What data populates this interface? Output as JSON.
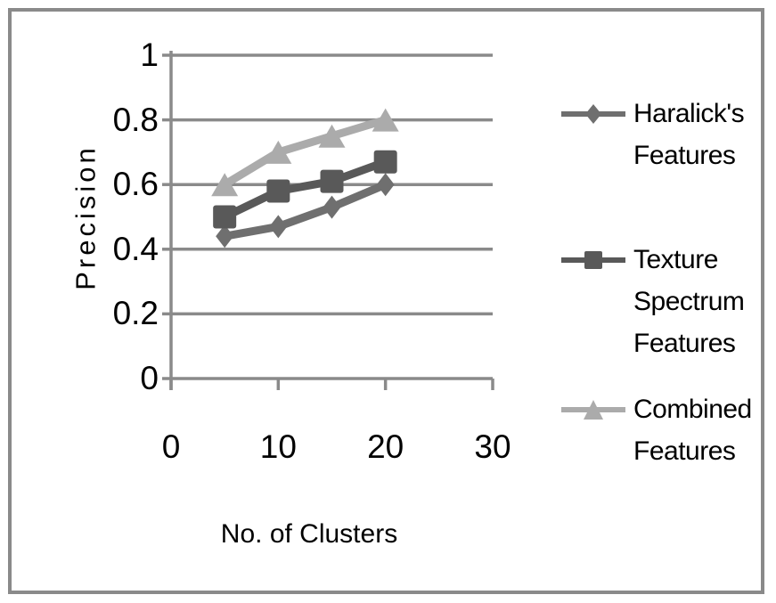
{
  "chart_data": {
    "type": "line",
    "xlabel": "No. of Clusters",
    "ylabel": "Precision",
    "x": [
      5,
      10,
      15,
      20
    ],
    "xlim": [
      0,
      30
    ],
    "ylim": [
      0,
      1
    ],
    "x_ticks": [
      0,
      10,
      20,
      30
    ],
    "x_tick_labels": [
      "0",
      "10",
      "20",
      "30"
    ],
    "y_ticks": [
      0,
      0.2,
      0.4,
      0.6,
      0.8,
      1
    ],
    "y_tick_labels": [
      "0",
      "0.2",
      "0.4",
      "0.6",
      "0.8",
      "1"
    ],
    "grid": true,
    "legend_position": "right",
    "series": [
      {
        "name": "Haralick's Features",
        "marker": "diamond",
        "color": "#6f6f6f",
        "values": [
          0.44,
          0.47,
          0.53,
          0.6
        ]
      },
      {
        "name": "Texture Spectrum Features",
        "marker": "square",
        "color": "#595959",
        "values": [
          0.5,
          0.58,
          0.61,
          0.67
        ]
      },
      {
        "name": "Combined Features",
        "marker": "triangle",
        "color": "#ababab",
        "values": [
          0.6,
          0.7,
          0.75,
          0.8
        ]
      }
    ],
    "colors": {
      "axis": "#8a8a8a",
      "frame": "#8a8a8a",
      "text": "#000000"
    }
  }
}
